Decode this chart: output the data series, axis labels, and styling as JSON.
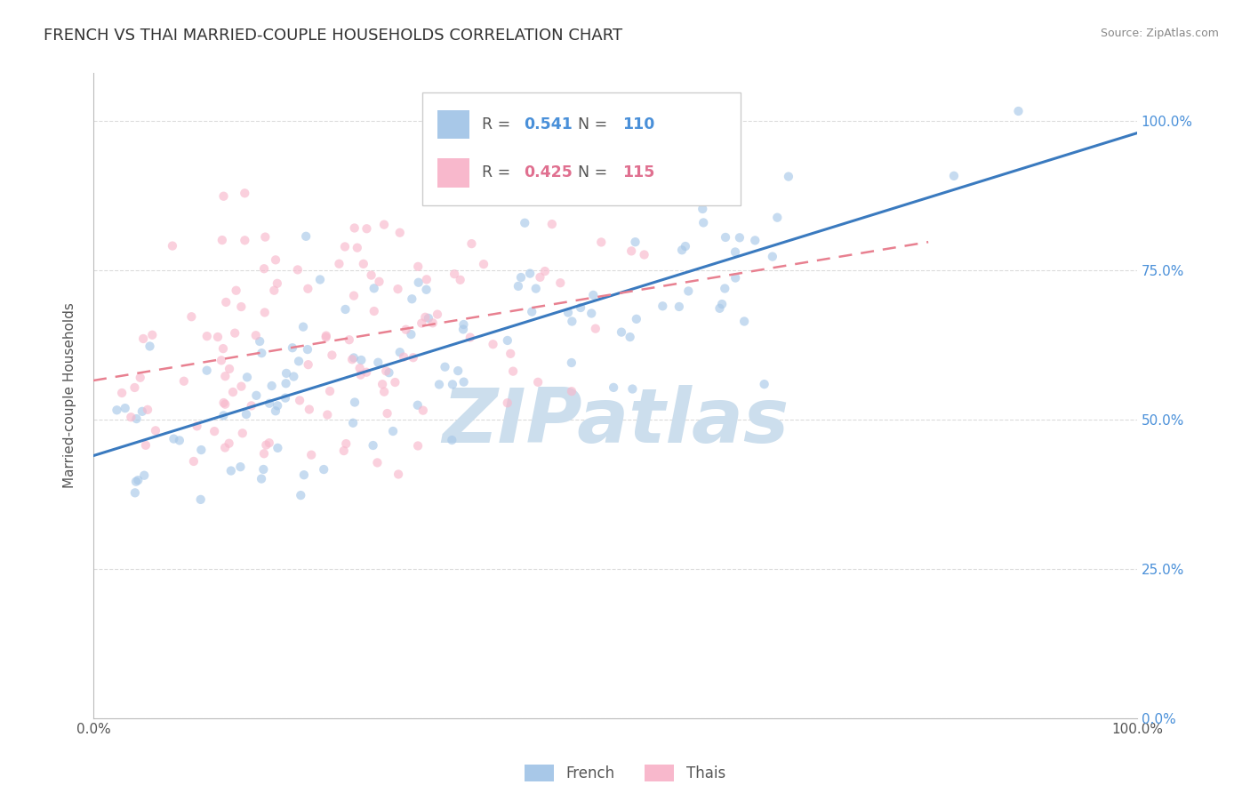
{
  "title": "FRENCH VS THAI MARRIED-COUPLE HOUSEHOLDS CORRELATION CHART",
  "source": "Source: ZipAtlas.com",
  "ylabel": "Married-couple Households",
  "watermark": "ZIPatlas",
  "legend_french_R": 0.541,
  "legend_french_N": 110,
  "legend_thai_R": 0.425,
  "legend_thai_N": 115,
  "french_color": "#a8c8e8",
  "thai_color": "#f8b8cc",
  "french_line_color": "#3a7abf",
  "thai_line_color": "#e88090",
  "right_tick_color": "#4a90d9",
  "background_color": "#ffffff",
  "grid_color": "#cccccc",
  "title_color": "#333333",
  "title_fontsize": 13,
  "watermark_color": "#ccdeed",
  "watermark_fontsize": 62,
  "scatter_size": 55,
  "scatter_alpha": 0.65,
  "legend_text_color": "#555555",
  "legend_val_color_french": "#4a90d9",
  "legend_val_color_thai": "#e07090",
  "source_color": "#888888"
}
